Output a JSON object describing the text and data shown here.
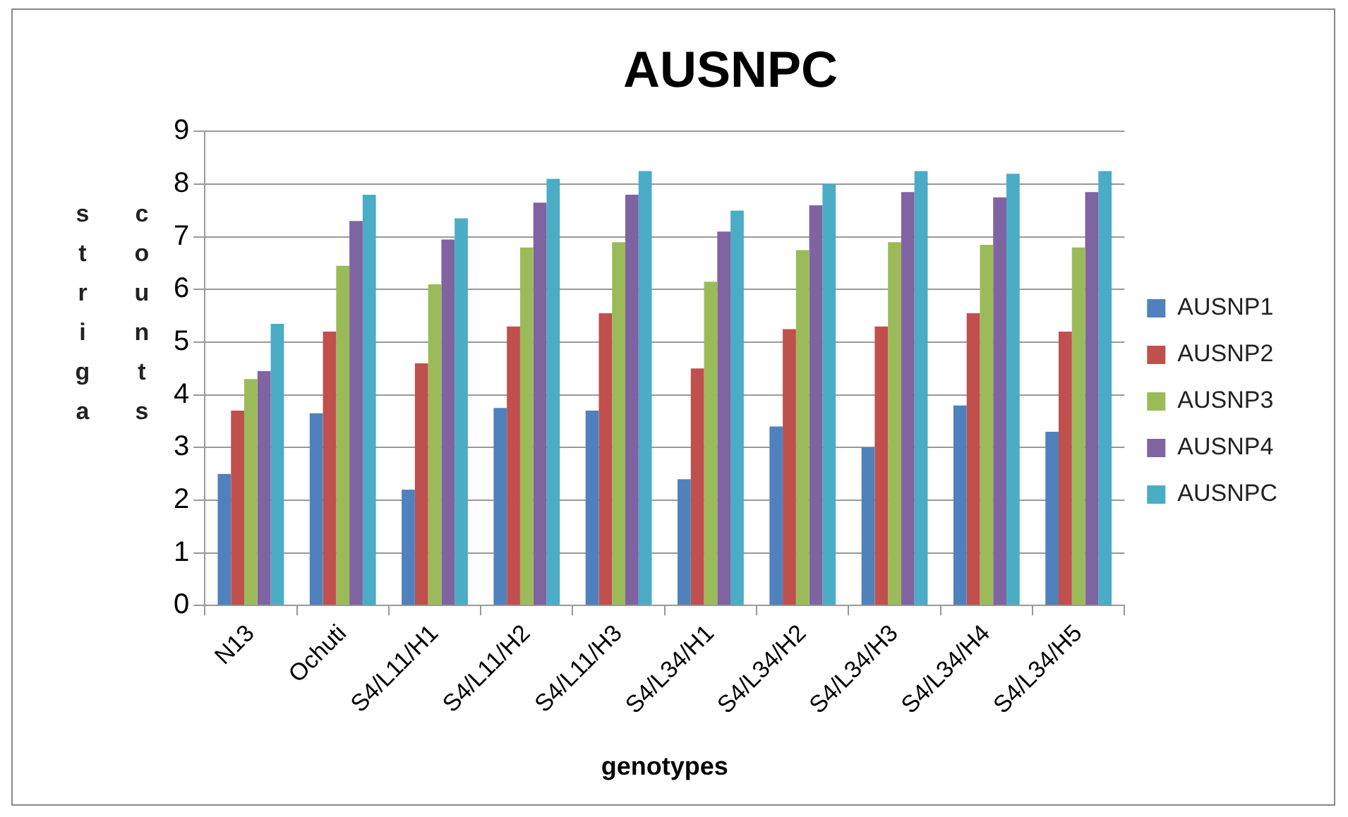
{
  "chart_data": {
    "type": "bar",
    "title": "AUSNPC",
    "xlabel": "genotypes",
    "ylabel": "striga counts",
    "categories": [
      "N13",
      "Ochuti",
      "S4/L11/H1",
      "S4/L11/H2",
      "S4/L11/H3",
      "S4/L34/H1",
      "S4/L34/H2",
      "S4/L34/H3",
      "S4/L34/H4",
      "S4/L34/H5"
    ],
    "series": [
      {
        "name": "AUSNP1",
        "color": "#4f81bd",
        "values": [
          2.5,
          3.65,
          2.2,
          3.75,
          3.7,
          2.4,
          3.4,
          3.0,
          3.8,
          3.3
        ]
      },
      {
        "name": "AUSNP2",
        "color": "#c0504d",
        "values": [
          3.7,
          5.2,
          4.6,
          5.3,
          5.55,
          4.5,
          5.25,
          5.3,
          5.55,
          5.2
        ]
      },
      {
        "name": "AUSNP3",
        "color": "#9bbb59",
        "values": [
          4.3,
          6.45,
          6.1,
          6.8,
          6.9,
          6.15,
          6.75,
          6.9,
          6.85,
          6.8
        ]
      },
      {
        "name": "AUSNP4",
        "color": "#8064a2",
        "values": [
          4.45,
          7.3,
          6.95,
          7.65,
          7.8,
          7.1,
          7.6,
          7.85,
          7.75,
          7.85
        ]
      },
      {
        "name": "AUSNPC",
        "color": "#4bacc6",
        "values": [
          5.35,
          7.8,
          7.35,
          8.1,
          8.25,
          7.5,
          8.0,
          8.25,
          8.2,
          8.25
        ]
      }
    ],
    "ylim": [
      0,
      9
    ],
    "yticks": [
      0,
      1,
      2,
      3,
      4,
      5,
      6,
      7,
      8,
      9
    ],
    "grid": "y",
    "legend": "right"
  }
}
